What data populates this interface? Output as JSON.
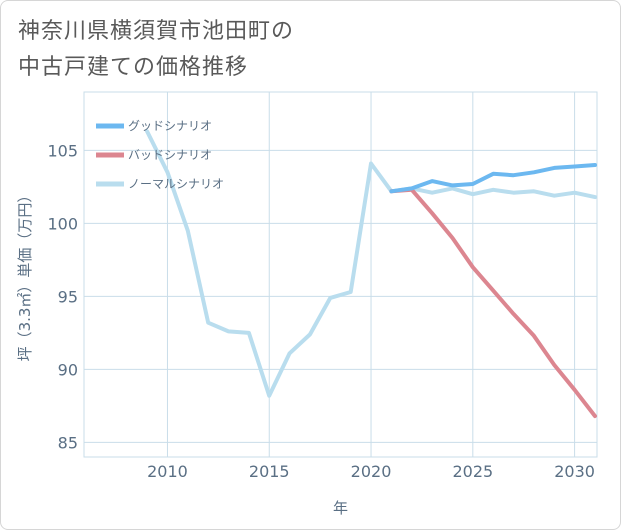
{
  "title": {
    "line1": "神奈川県横須賀市池田町の",
    "line2": "中古戸建ての価格推移"
  },
  "chart_data": {
    "type": "line",
    "xlabel": "年",
    "ylabel": "坪（3.3㎡）単価（万円）",
    "xlim": [
      2005.9,
      2031.1
    ],
    "ylim": [
      84,
      109
    ],
    "xticks": [
      2010,
      2015,
      2020,
      2025,
      2030
    ],
    "yticks": [
      85,
      90,
      95,
      100,
      105
    ],
    "legend_position": "top-left",
    "series": [
      {
        "name": "グッドシナリオ",
        "color": "#6cb8f0",
        "x": [
          2021,
          2022,
          2023,
          2024,
          2025,
          2026,
          2027,
          2028,
          2029,
          2030,
          2031
        ],
        "y": [
          102.2,
          102.4,
          102.9,
          102.6,
          102.7,
          103.4,
          103.3,
          103.5,
          103.8,
          103.9,
          104.0
        ]
      },
      {
        "name": "バッドシナリオ",
        "color": "#dc8690",
        "x": [
          2021,
          2022,
          2023,
          2024,
          2025,
          2026,
          2027,
          2028,
          2029,
          2030,
          2031
        ],
        "y": [
          102.2,
          102.3,
          100.7,
          99.0,
          97.0,
          95.4,
          93.8,
          92.3,
          90.3,
          88.6,
          86.8
        ]
      },
      {
        "name": "ノーマルシナリオ",
        "color": "#b9ddee",
        "x": [
          2009,
          2010,
          2011,
          2012,
          2013,
          2014,
          2015,
          2016,
          2017,
          2018,
          2019,
          2020,
          2021,
          2022,
          2023,
          2024,
          2025,
          2026,
          2027,
          2028,
          2029,
          2030,
          2031
        ],
        "y": [
          106.3,
          103.5,
          99.5,
          93.2,
          92.6,
          92.5,
          88.2,
          91.1,
          92.4,
          94.9,
          95.3,
          104.1,
          102.2,
          102.4,
          102.1,
          102.4,
          102.0,
          102.3,
          102.1,
          102.2,
          101.9,
          102.1,
          101.8
        ]
      }
    ]
  }
}
